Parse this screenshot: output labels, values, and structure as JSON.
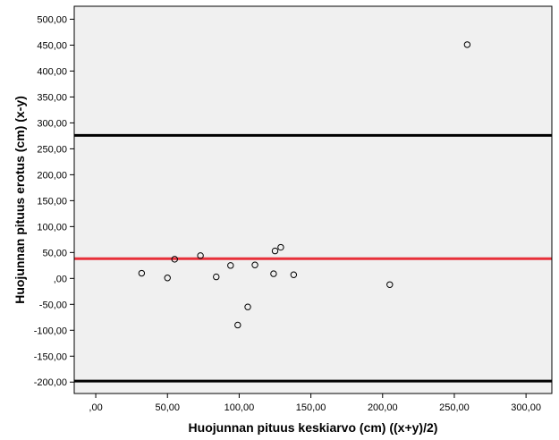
{
  "chart_data": {
    "type": "scatter",
    "title": "",
    "xlabel": "Huojunnan pituus keskiarvo (cm) ((x+y)/2)",
    "ylabel": "Huojunnan pituus erotus (cm) (x-y)",
    "xlim": [
      -15,
      318
    ],
    "ylim": [
      -222,
      525
    ],
    "xticks": [
      0,
      50,
      100,
      150,
      200,
      250,
      300
    ],
    "xtick_labels": [
      ",00",
      "50,00",
      "100,00",
      "150,00",
      "200,00",
      "250,00",
      "300,00"
    ],
    "yticks": [
      500,
      450,
      400,
      350,
      300,
      250,
      200,
      150,
      100,
      50,
      0,
      -50,
      -100,
      -150,
      -200
    ],
    "ytick_labels": [
      "500,00",
      "450,00",
      "400,00",
      "350,00",
      "300,00",
      "250,00",
      "200,00",
      "150,00",
      "100,00",
      "50,00",
      ",00",
      "-50,00",
      "-100,00",
      "-150,00",
      "-200,00"
    ],
    "grid": false,
    "points": [
      {
        "x": 32,
        "y": 10
      },
      {
        "x": 50,
        "y": 1
      },
      {
        "x": 55,
        "y": 37
      },
      {
        "x": 73,
        "y": 44
      },
      {
        "x": 84,
        "y": 3
      },
      {
        "x": 94,
        "y": 25
      },
      {
        "x": 99,
        "y": -90
      },
      {
        "x": 106,
        "y": -55
      },
      {
        "x": 111,
        "y": 26
      },
      {
        "x": 124,
        "y": 9
      },
      {
        "x": 125,
        "y": 53
      },
      {
        "x": 129,
        "y": 60
      },
      {
        "x": 138,
        "y": 7
      },
      {
        "x": 205,
        "y": -12
      },
      {
        "x": 259,
        "y": 451
      }
    ],
    "reference_lines": [
      {
        "y": 276,
        "color": "#000000"
      },
      {
        "y": 38,
        "color": "#e8303a"
      },
      {
        "y": -198,
        "color": "#000000"
      }
    ],
    "colors": {
      "plot_background": "#f0f0f0",
      "marker_stroke": "#000000",
      "mean_line": "#e8303a",
      "limit_line": "#000000"
    }
  }
}
